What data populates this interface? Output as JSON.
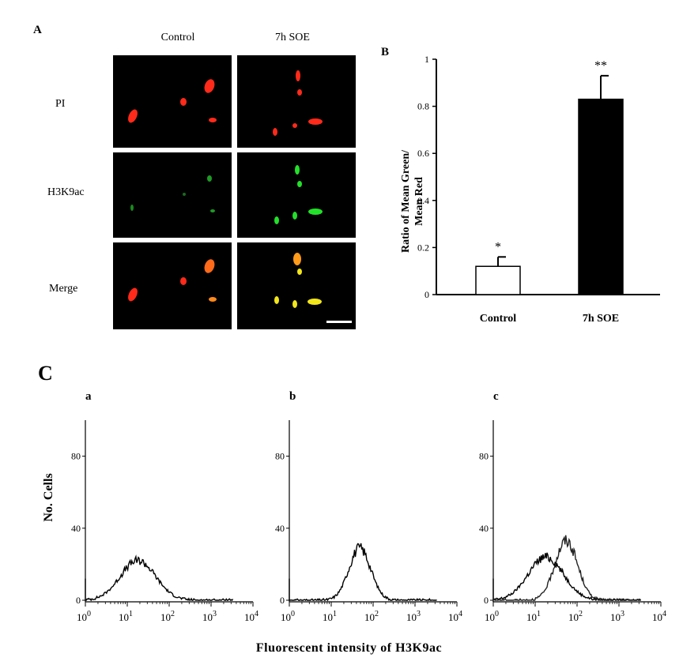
{
  "panel_a": {
    "letter": "A",
    "col_labels": [
      "Control",
      "7h SOE"
    ],
    "row_labels": [
      "PI",
      "H3K9ac",
      "Merge"
    ],
    "colors": {
      "red": "#ff2a1a",
      "green": "#23e02a",
      "yellow": "#f2e61a",
      "orange": "#ff8a1a"
    }
  },
  "panel_b": {
    "letter": "B",
    "ylabel_line1": "Ratio of Mean Green/",
    "ylabel_line2": "Mean Red",
    "significance": [
      "*",
      "**"
    ]
  },
  "panel_c": {
    "letter": "C",
    "sub_letters": [
      "a",
      "b",
      "c"
    ],
    "ylabel": "No. Cells",
    "xlabel": "Fluorescent intensity of H3K9ac"
  },
  "chart_data": [
    {
      "type": "bar",
      "categories": [
        "Control",
        "7h SOE"
      ],
      "values": [
        0.12,
        0.83
      ],
      "errors": [
        0.04,
        0.1
      ],
      "colors": [
        "#ffffff",
        "#000000"
      ],
      "yticks": [
        "0",
        "0.2",
        "0.4",
        "0.6",
        "0.8",
        "1"
      ],
      "ylim": [
        0,
        1
      ]
    },
    {
      "type": "histogram",
      "xscale": "log",
      "xlim": [
        1,
        10000
      ],
      "ylim": [
        0,
        100
      ],
      "yticks": [
        "0",
        "40",
        "80"
      ],
      "xticks": [
        "10^0",
        "10^1",
        "10^2",
        "10^3",
        "10^4"
      ],
      "series": [
        {
          "peak_x": 18,
          "peak_y": 22,
          "width": 0.42
        }
      ]
    },
    {
      "type": "histogram",
      "xscale": "log",
      "xlim": [
        1,
        10000
      ],
      "ylim": [
        0,
        100
      ],
      "yticks": [
        "0",
        "40",
        "80"
      ],
      "xticks": [
        "10^0",
        "10^1",
        "10^2",
        "10^3",
        "10^4"
      ],
      "series": [
        {
          "peak_x": 48,
          "peak_y": 29,
          "width": 0.26
        }
      ]
    },
    {
      "type": "histogram",
      "xscale": "log",
      "xlim": [
        1,
        10000
      ],
      "ylim": [
        0,
        100
      ],
      "yticks": [
        "0",
        "40",
        "80"
      ],
      "xticks": [
        "10^0",
        "10^1",
        "10^2",
        "10^3",
        "10^4"
      ],
      "series": [
        {
          "peak_x": 18,
          "peak_y": 24,
          "width": 0.42
        },
        {
          "peak_x": 55,
          "peak_y": 33,
          "width": 0.27
        }
      ]
    }
  ]
}
